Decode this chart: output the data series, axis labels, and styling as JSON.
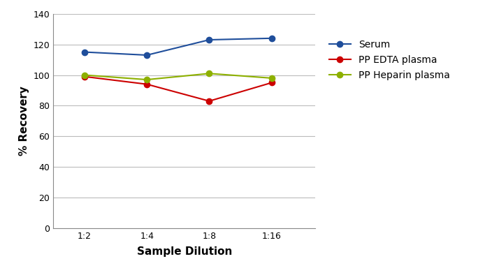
{
  "x_labels": [
    "1:2",
    "1:4",
    "1:8",
    "1:16"
  ],
  "x_positions": [
    0,
    1,
    2,
    3
  ],
  "serum": [
    115,
    113,
    123,
    124
  ],
  "pp_edta": [
    99,
    94,
    83,
    95
  ],
  "pp_heparin": [
    100,
    97,
    101,
    98
  ],
  "serum_color": "#1F4E9B",
  "edta_color": "#CC0000",
  "heparin_color": "#8DB000",
  "ylabel": "% Recovery",
  "xlabel": "Sample Dilution",
  "ylim": [
    0,
    140
  ],
  "yticks": [
    0,
    20,
    40,
    60,
    80,
    100,
    120,
    140
  ],
  "legend_labels": [
    "Serum",
    "PP EDTA plasma",
    "PP Heparin plasma"
  ],
  "marker": "o",
  "linewidth": 1.5,
  "markersize": 6,
  "background_color": "#FFFFFF",
  "grid_color": "#BBBBBB",
  "tick_fontsize": 9,
  "label_fontsize": 11,
  "legend_fontsize": 10
}
